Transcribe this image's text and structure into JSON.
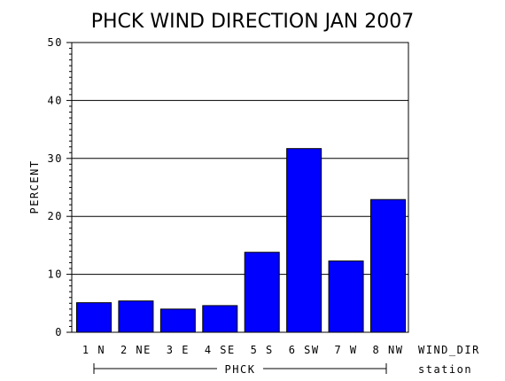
{
  "chart_data": {
    "type": "bar",
    "title": "PHCK WIND DIRECTION JAN 2007",
    "ylabel": "PERCENT",
    "xlabel": "WIND_DIR",
    "group_axis_label": "station",
    "group_label": "PHCK",
    "categories": [
      "1 N",
      "2 NE",
      "3 E",
      "4 SE",
      "5 S",
      "6 SW",
      "7 W",
      "8 NW"
    ],
    "values": [
      5.1,
      5.4,
      4.0,
      4.6,
      13.8,
      31.7,
      12.3,
      22.9
    ],
    "ylim": [
      0,
      50
    ],
    "yticks": [
      "0",
      "10",
      "20",
      "30",
      "40",
      "50"
    ],
    "grid": true,
    "legend": "none",
    "bar_color": "#0000ff"
  }
}
